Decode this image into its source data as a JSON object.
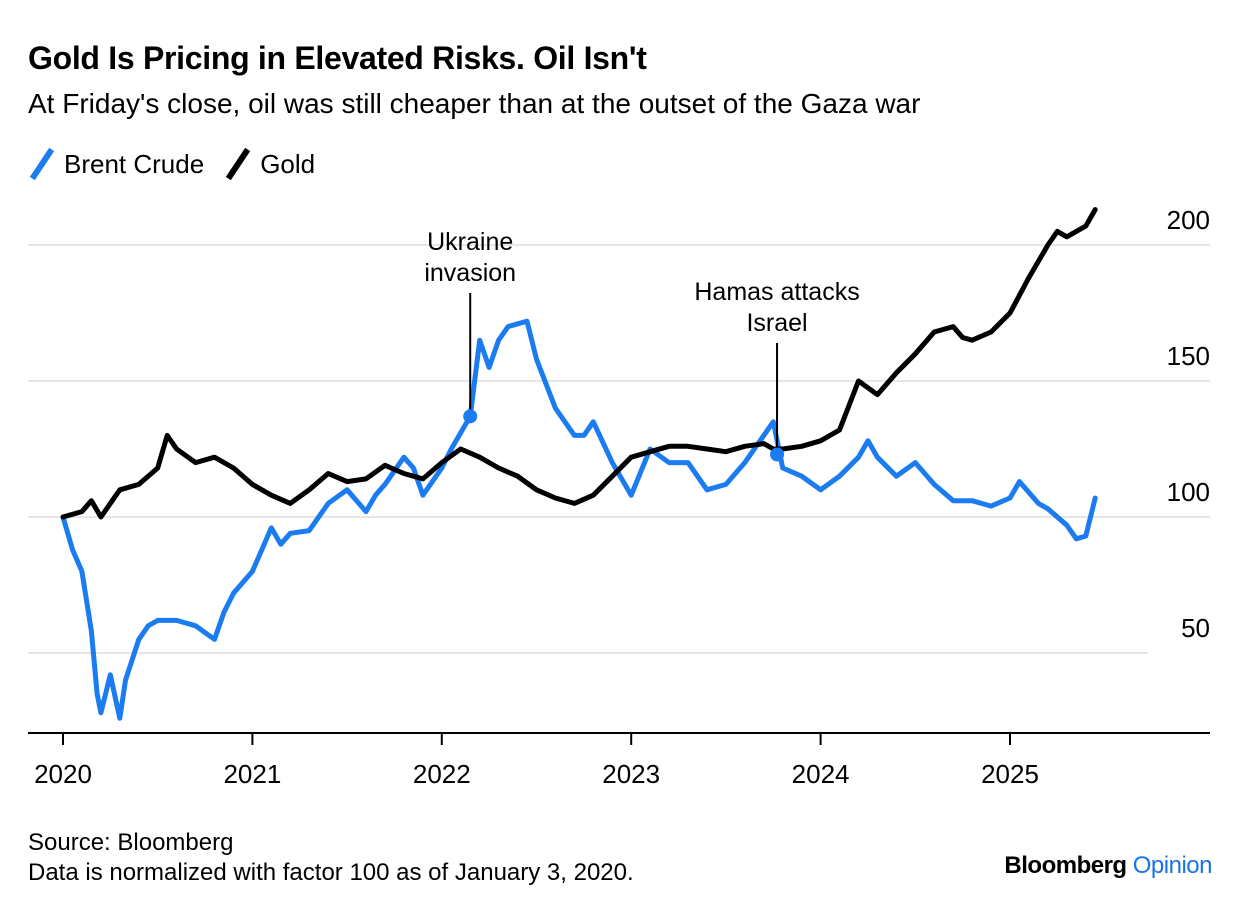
{
  "title": "Gold Is Pricing in Elevated Risks. Oil Isn't",
  "subtitle": "At Friday's close, oil was still cheaper than at the outset of the Gaza war",
  "legend": [
    {
      "label": "Brent Crude",
      "color": "#1a7cf0"
    },
    {
      "label": "Gold",
      "color": "#000000"
    }
  ],
  "footer": {
    "source": "Source: Bloomberg",
    "note": "Data is normalized with factor 100 as of January 3, 2020."
  },
  "brand": {
    "name": "Bloomberg",
    "section": "Opinion"
  },
  "colors": {
    "brent": "#1a7cf0",
    "gold": "#000000",
    "grid": "#e6e6e6",
    "brand_accent": "#1a73e8"
  },
  "chart_data": {
    "type": "line",
    "xlim": [
      2020.0,
      2026.0
    ],
    "ylim": [
      20,
      210
    ],
    "y_ticks": [
      50,
      100,
      150,
      200
    ],
    "x_ticks": [
      2020,
      2021,
      2022,
      2023,
      2024,
      2025
    ],
    "grid": true,
    "y_axis_position": "right",
    "series": [
      {
        "name": "Brent Crude",
        "color": "#1a7cf0",
        "x": [
          2020.0,
          2020.05,
          2020.1,
          2020.15,
          2020.18,
          2020.2,
          2020.25,
          2020.3,
          2020.33,
          2020.4,
          2020.45,
          2020.5,
          2020.6,
          2020.7,
          2020.8,
          2020.85,
          2020.9,
          2021.0,
          2021.1,
          2021.15,
          2021.2,
          2021.3,
          2021.4,
          2021.5,
          2021.6,
          2021.65,
          2021.7,
          2021.8,
          2021.85,
          2021.9,
          2022.0,
          2022.05,
          2022.15,
          2022.2,
          2022.25,
          2022.3,
          2022.35,
          2022.45,
          2022.5,
          2022.6,
          2022.7,
          2022.75,
          2022.8,
          2022.9,
          2023.0,
          2023.1,
          2023.2,
          2023.3,
          2023.4,
          2023.5,
          2023.6,
          2023.7,
          2023.75,
          2023.8,
          2023.9,
          2024.0,
          2024.1,
          2024.2,
          2024.25,
          2024.3,
          2024.4,
          2024.5,
          2024.6,
          2024.7,
          2024.8,
          2024.9,
          2025.0,
          2025.05,
          2025.15,
          2025.2,
          2025.3,
          2025.35,
          2025.4,
          2025.45
        ],
        "values": [
          100,
          88,
          80,
          58,
          35,
          28,
          42,
          26,
          40,
          55,
          60,
          62,
          62,
          60,
          55,
          65,
          72,
          80,
          96,
          90,
          94,
          95,
          105,
          110,
          102,
          108,
          112,
          122,
          118,
          108,
          118,
          125,
          137,
          165,
          155,
          165,
          170,
          172,
          158,
          140,
          130,
          130,
          135,
          120,
          108,
          125,
          120,
          120,
          110,
          112,
          120,
          130,
          135,
          118,
          115,
          110,
          115,
          122,
          128,
          122,
          115,
          120,
          112,
          106,
          106,
          104,
          107,
          113,
          105,
          103,
          97,
          92,
          93,
          107
        ]
      },
      {
        "name": "Gold",
        "color": "#000000",
        "x": [
          2020.0,
          2020.1,
          2020.15,
          2020.2,
          2020.3,
          2020.4,
          2020.5,
          2020.55,
          2020.6,
          2020.7,
          2020.8,
          2020.9,
          2021.0,
          2021.1,
          2021.2,
          2021.3,
          2021.4,
          2021.5,
          2021.6,
          2021.7,
          2021.8,
          2021.9,
          2022.0,
          2022.1,
          2022.2,
          2022.3,
          2022.4,
          2022.5,
          2022.6,
          2022.7,
          2022.8,
          2022.9,
          2023.0,
          2023.1,
          2023.2,
          2023.3,
          2023.4,
          2023.5,
          2023.6,
          2023.7,
          2023.75,
          2023.8,
          2023.9,
          2024.0,
          2024.1,
          2024.2,
          2024.3,
          2024.4,
          2024.5,
          2024.6,
          2024.7,
          2024.75,
          2024.8,
          2024.9,
          2025.0,
          2025.1,
          2025.2,
          2025.25,
          2025.3,
          2025.35,
          2025.4,
          2025.45
        ],
        "values": [
          100,
          102,
          106,
          100,
          110,
          112,
          118,
          130,
          125,
          120,
          122,
          118,
          112,
          108,
          105,
          110,
          116,
          113,
          114,
          119,
          116,
          114,
          120,
          125,
          122,
          118,
          115,
          110,
          107,
          105,
          108,
          115,
          122,
          124,
          126,
          126,
          125,
          124,
          126,
          127,
          125,
          125,
          126,
          128,
          132,
          150,
          145,
          153,
          160,
          168,
          170,
          166,
          165,
          168,
          175,
          188,
          200,
          205,
          203,
          205,
          207,
          213
        ]
      }
    ],
    "annotations": [
      {
        "text_lines": [
          "Ukraine",
          "invasion"
        ],
        "x": 2022.15,
        "y": 137,
        "series": "Brent Crude"
      },
      {
        "text_lines": [
          "Hamas attacks",
          "Israel"
        ],
        "x": 2023.77,
        "y": 123,
        "series": "Brent Crude"
      }
    ]
  }
}
